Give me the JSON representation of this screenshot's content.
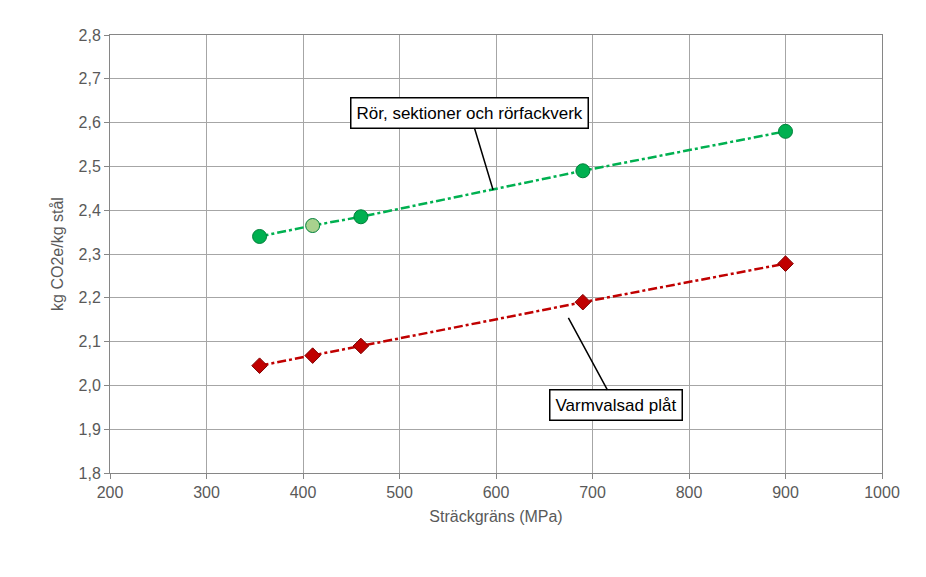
{
  "chart_data": {
    "type": "line",
    "x_label": "Sträckgräns (MPa)",
    "y_label": "kg CO2e/kg stål",
    "xlim": [
      200,
      1000
    ],
    "xticks": [
      200,
      300,
      400,
      500,
      600,
      700,
      800,
      900,
      1000
    ],
    "ylim": [
      1.8,
      2.8
    ],
    "yticks": [
      {
        "value": 1.8,
        "label": "1,8"
      },
      {
        "value": 1.9,
        "label": "1,9"
      },
      {
        "value": 2.0,
        "label": "2,0"
      },
      {
        "value": 2.1,
        "label": "2,1"
      },
      {
        "value": 2.2,
        "label": "2,2"
      },
      {
        "value": 2.3,
        "label": "2,3"
      },
      {
        "value": 2.4,
        "label": "2,4"
      },
      {
        "value": 2.5,
        "label": "2,5"
      },
      {
        "value": 2.6,
        "label": "2,6"
      },
      {
        "value": 2.7,
        "label": "2,7"
      },
      {
        "value": 2.8,
        "label": "2,8"
      }
    ],
    "grid": true,
    "series": [
      {
        "name": "Rör, sektioner och rörfackverk",
        "color": "#00b050",
        "marker": "circle",
        "line_style": "dashdot",
        "colors": [
          "#00b050",
          "#a9d18e",
          "#00b050",
          "#00b050",
          "#00b050"
        ],
        "x": [
          355,
          410,
          460,
          690,
          900
        ],
        "values": [
          2.34,
          2.365,
          2.385,
          2.49,
          2.58
        ]
      },
      {
        "name": "Varmvalsad plåt",
        "color": "#c00000",
        "marker": "diamond",
        "line_style": "dashdot",
        "colors": [
          "#c00000",
          "#c00000",
          "#c00000",
          "#c00000",
          "#c00000"
        ],
        "x": [
          355,
          410,
          460,
          690,
          900
        ],
        "values": [
          2.045,
          2.068,
          2.09,
          2.19,
          2.278
        ]
      }
    ],
    "annotations": [
      {
        "text": "Rör, sektioner och rörfackverk",
        "x": 597,
        "y": 2.446,
        "ax": 573,
        "ay": 2.622
      },
      {
        "text": "Varmvalsad plåt",
        "x": 675,
        "y": 2.154,
        "ax": 724,
        "ay": 1.955
      }
    ]
  }
}
